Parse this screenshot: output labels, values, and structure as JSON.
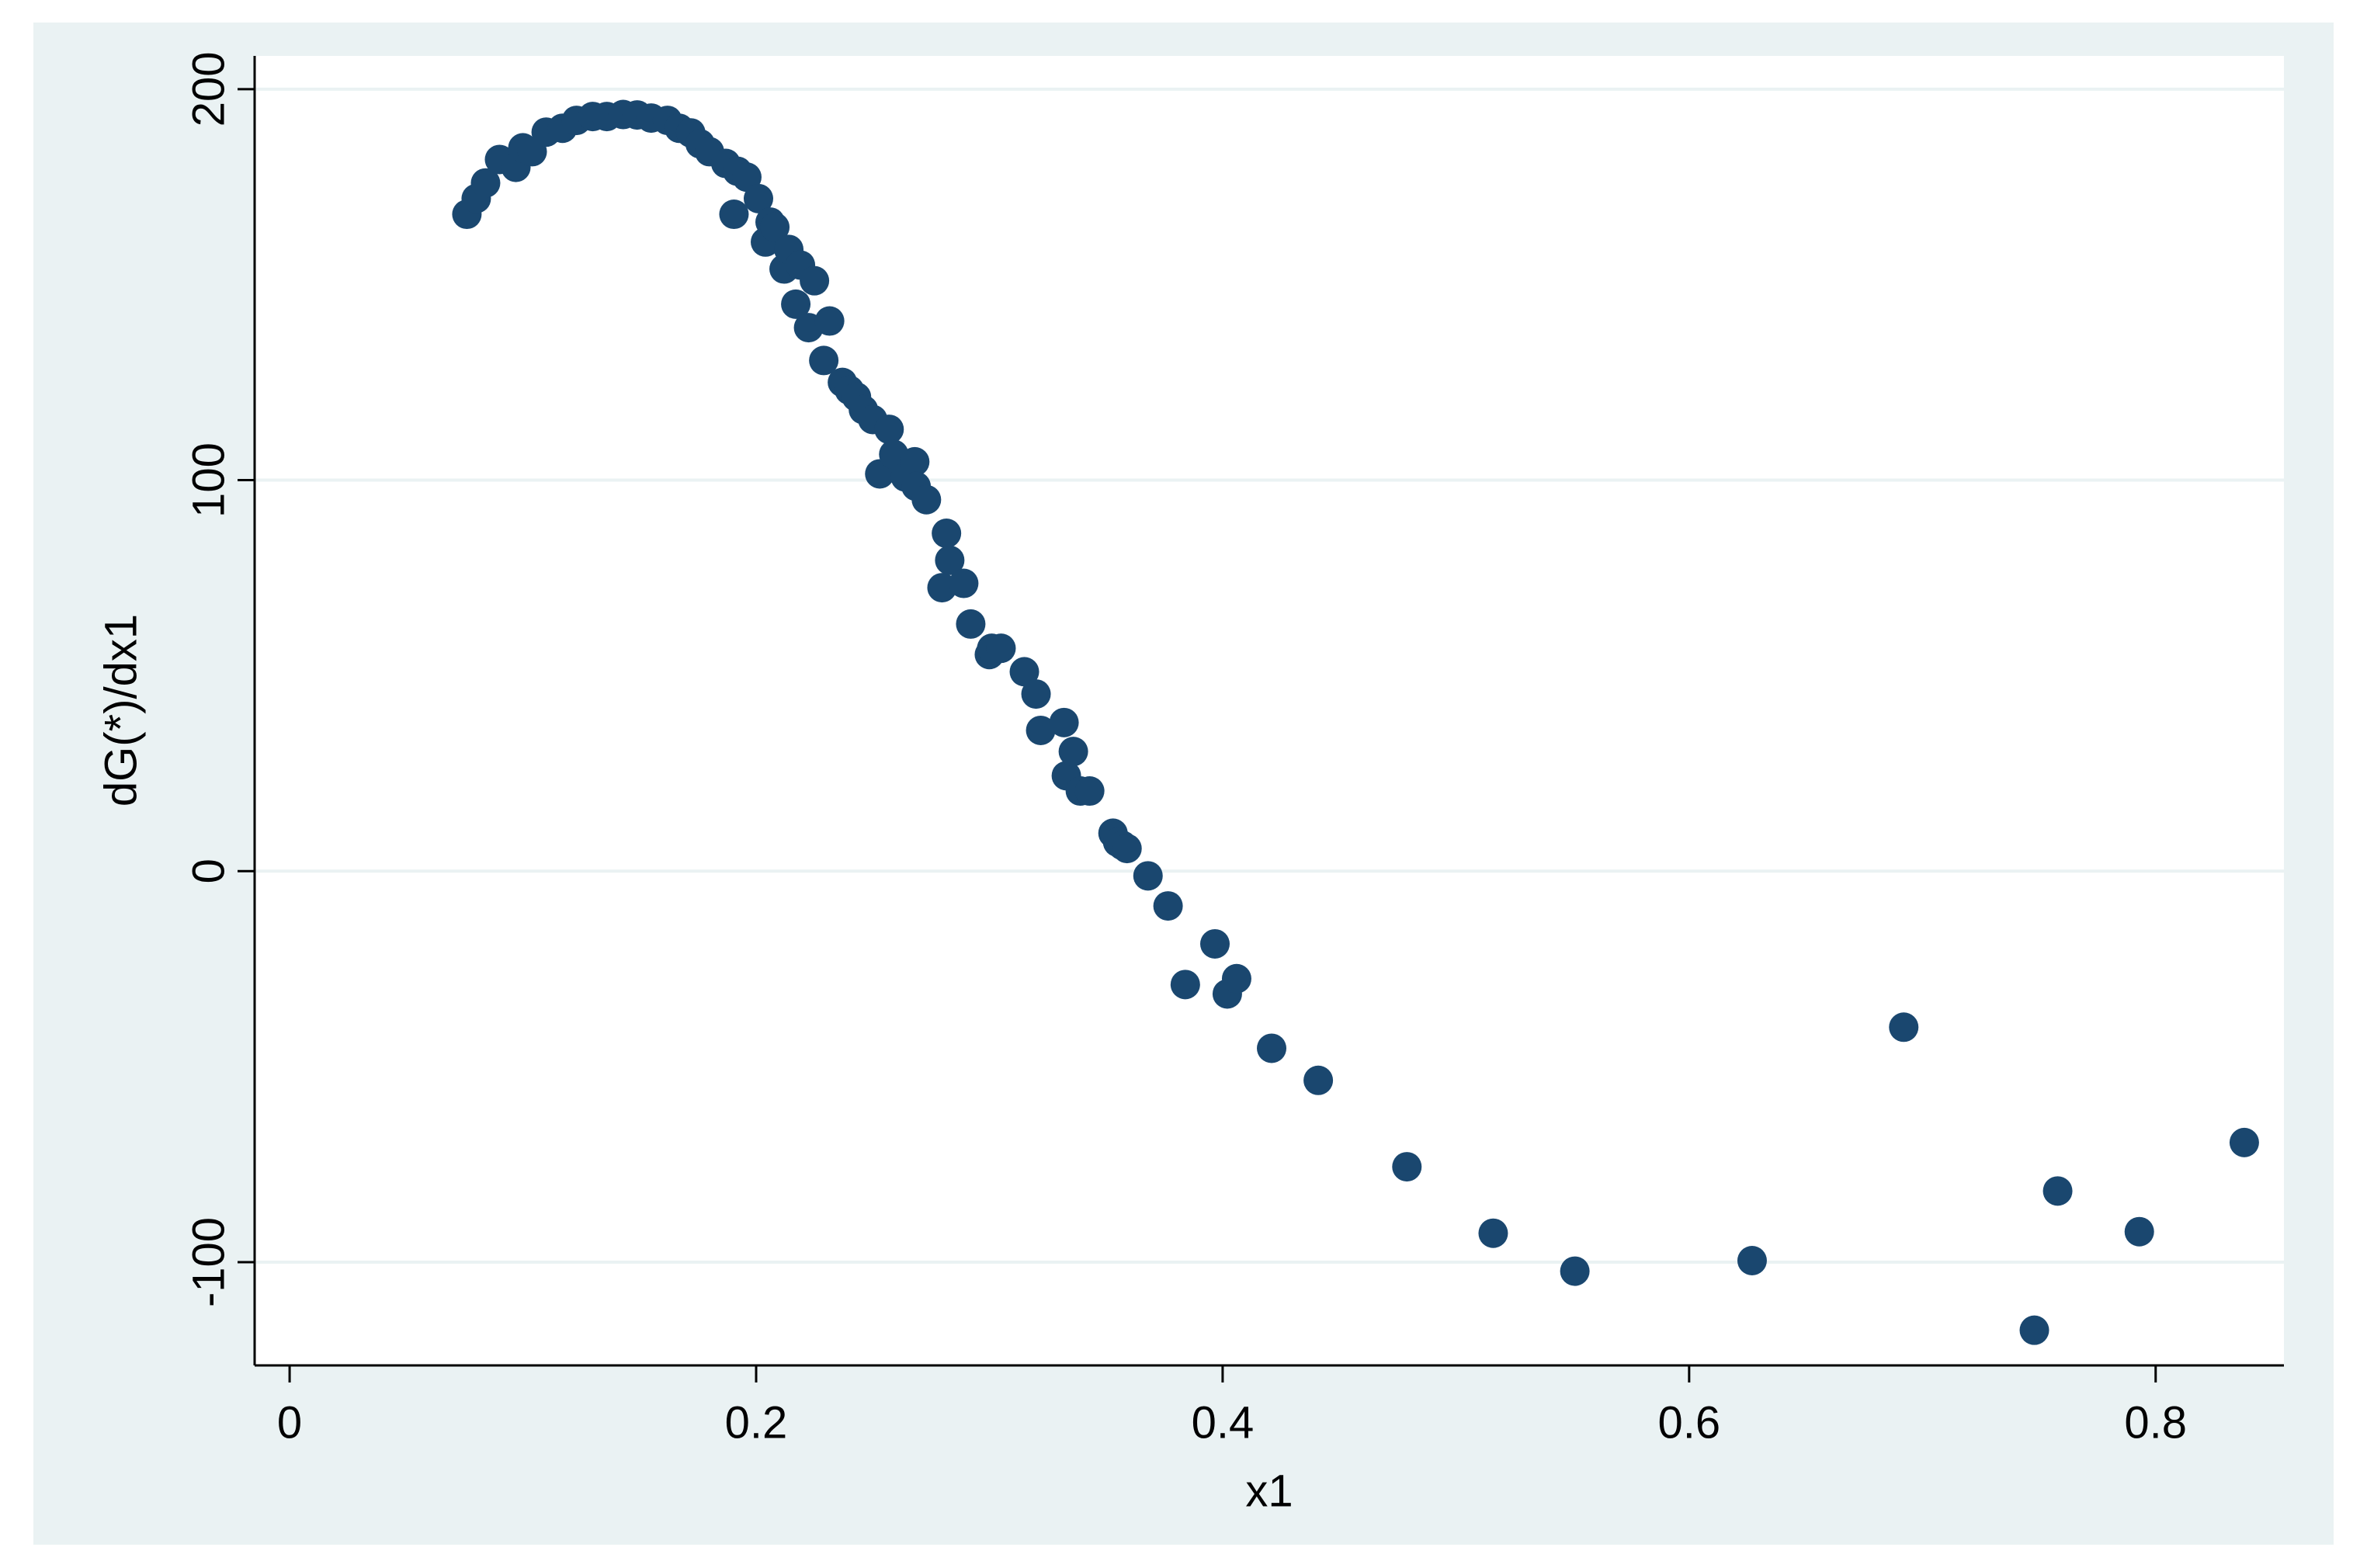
{
  "chart_data": {
    "type": "scatter",
    "x_label": "x1",
    "y_label": "dG(*)/dx1",
    "x": [
      0.076,
      0.08,
      0.084,
      0.09,
      0.097,
      0.1,
      0.104,
      0.11,
      0.117,
      0.123,
      0.13,
      0.136,
      0.143,
      0.149,
      0.155,
      0.162,
      0.167,
      0.172,
      0.176,
      0.18,
      0.187,
      0.1905,
      0.192,
      0.196,
      0.201,
      0.204,
      0.206,
      0.208,
      0.212,
      0.214,
      0.217,
      0.219,
      0.2225,
      0.225,
      0.229,
      0.2315,
      0.237,
      0.24,
      0.243,
      0.246,
      0.25,
      0.253,
      0.257,
      0.259,
      0.264,
      0.268,
      0.2686,
      0.273,
      0.2797,
      0.2816,
      0.283,
      0.289,
      0.292,
      0.3,
      0.301,
      0.305,
      0.315,
      0.32,
      0.322,
      0.332,
      0.333,
      0.336,
      0.339,
      0.343,
      0.353,
      0.355,
      0.357,
      0.359,
      0.368,
      0.3766,
      0.384,
      0.3967,
      0.402,
      0.406,
      0.421,
      0.441,
      0.479,
      0.516,
      0.551,
      0.627,
      0.692,
      0.748,
      0.758,
      0.793,
      0.838
    ],
    "values": [
      168,
      172,
      176,
      182,
      180,
      185,
      184,
      189,
      190,
      192,
      193,
      193,
      193.5,
      193.4,
      192.6,
      192,
      190,
      188.8,
      186,
      184,
      181,
      168,
      179,
      177.5,
      172,
      160.9,
      166,
      164.7,
      154,
      159,
      145,
      155,
      139,
      151,
      130.6,
      140.7,
      125,
      123,
      121.3,
      118,
      115.5,
      101.6,
      113,
      106.6,
      100.8,
      104.7,
      98.4,
      95,
      72.5,
      86.4,
      79.5,
      73.6,
      63.2,
      55.4,
      57,
      57,
      51,
      45.3,
      36,
      38,
      24.4,
      30.6,
      20.5,
      20.5,
      9.7,
      7.4,
      6.6,
      5.8,
      -1.2,
      -8.9,
      -29,
      -18.6,
      -31.4,
      -27.5,
      -45.3,
      -53.5,
      -75.6,
      -92.6,
      -102.3,
      -99.6,
      -39.9,
      -117.4,
      -81.8,
      -92.2,
      -69.4
    ],
    "color": "#1a476f",
    "xlim": [
      -0.015,
      0.855
    ],
    "xticks": [
      0,
      0.2,
      0.4,
      0.6,
      0.8
    ],
    "ylim": [
      -126.4,
      208.5
    ],
    "yticks": [
      -100,
      0,
      100,
      200
    ],
    "grid": true
  }
}
